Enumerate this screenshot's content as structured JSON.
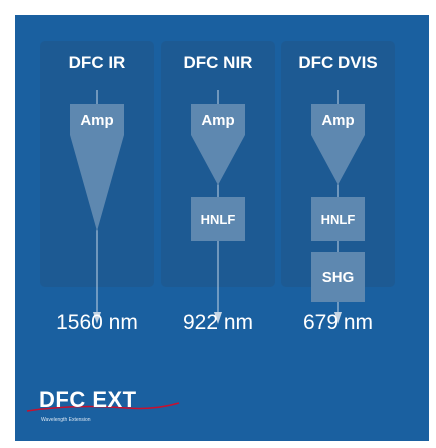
{
  "columns": [
    {
      "title": "DFC IR",
      "wavelength": "1560 nm",
      "stages": [
        "Amp"
      ]
    },
    {
      "title": "DFC NIR",
      "wavelength": "922 nm",
      "stages": [
        "Amp",
        "HNLF"
      ]
    },
    {
      "title": "DFC DVIS",
      "wavelength": "679 nm",
      "stages": [
        "Amp",
        "HNLF",
        "SHG"
      ]
    }
  ],
  "logo": {
    "name": "DFC EXT",
    "tagline": "Wavelength Extension"
  },
  "colors": {
    "background": "#1a60a0",
    "column": "#1d5a93",
    "box": "#5e88b0",
    "line": "#c4d4e4",
    "logo_swoosh": "#c8102e"
  }
}
